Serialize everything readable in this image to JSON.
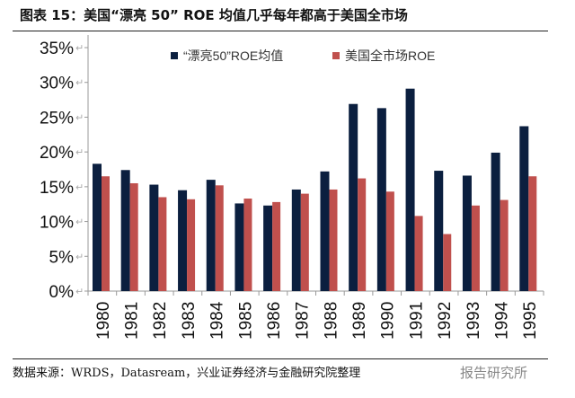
{
  "title": "图表 15：美国“漂亮 50” ROE 均值几乎每年都高于美国全市场",
  "source": "数据来源：WRDS，Datasream，兴业证券经济与金融研究院整理",
  "watermark": "报告研究所",
  "chart_data": {
    "type": "bar",
    "categories": [
      "1980",
      "1981",
      "1982",
      "1983",
      "1984",
      "1985",
      "1986",
      "1987",
      "1988",
      "1989",
      "1990",
      "1991",
      "1992",
      "1993",
      "1994",
      "1995"
    ],
    "series": [
      {
        "name": "“漂亮50”ROE均值",
        "color": "#0b1f3f",
        "values": [
          18.3,
          17.4,
          15.3,
          14.5,
          16.0,
          12.6,
          12.3,
          14.6,
          17.2,
          26.9,
          26.3,
          29.1,
          17.3,
          16.6,
          19.9,
          23.7
        ]
      },
      {
        "name": "美国全市场ROE",
        "color": "#c0504d",
        "values": [
          16.5,
          15.5,
          13.5,
          13.2,
          15.2,
          13.3,
          12.8,
          14.0,
          14.6,
          16.2,
          14.3,
          10.8,
          8.2,
          12.3,
          13.1,
          16.5
        ]
      }
    ],
    "ylim": [
      0,
      35
    ],
    "yticks": [
      "0%",
      "5%",
      "10%",
      "15%",
      "20%",
      "25%",
      "30%",
      "35%"
    ],
    "legend": "top",
    "grid": false
  }
}
